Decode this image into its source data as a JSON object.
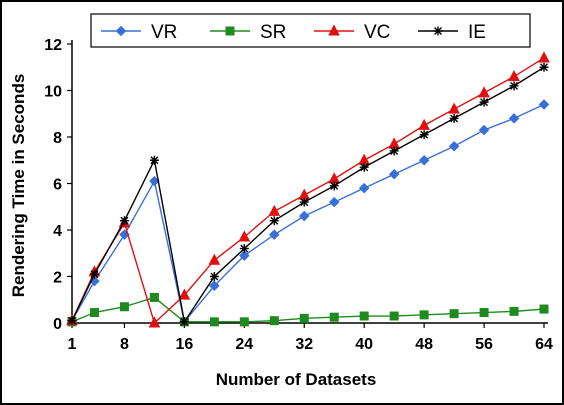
{
  "chart_data": {
    "type": "line",
    "title": "",
    "xlabel": "Number of Datasets",
    "ylabel": "Rendering Time in Seconds",
    "xlim": [
      1,
      64
    ],
    "ylim": [
      0,
      12
    ],
    "xticks": [
      1,
      8,
      16,
      24,
      32,
      40,
      48,
      56,
      64
    ],
    "yticks": [
      0,
      2,
      4,
      6,
      8,
      10,
      12
    ],
    "grid": false,
    "legend": "top",
    "series": [
      {
        "name": "VR",
        "color": "#3a6fd8",
        "marker": "diamond",
        "x": [
          1,
          4,
          8,
          12,
          16,
          20,
          24,
          28,
          32,
          36,
          40,
          44,
          48,
          52,
          56,
          60,
          64
        ],
        "y": [
          0.1,
          1.8,
          3.8,
          6.1,
          0.05,
          1.6,
          2.9,
          3.8,
          4.6,
          5.2,
          5.8,
          6.4,
          7.0,
          7.6,
          8.3,
          8.8,
          9.4
        ]
      },
      {
        "name": "SR",
        "color": "#1f8a1f",
        "marker": "square",
        "x": [
          1,
          4,
          8,
          12,
          16,
          20,
          24,
          28,
          32,
          36,
          40,
          44,
          48,
          52,
          56,
          60,
          64
        ],
        "y": [
          0.05,
          0.45,
          0.7,
          1.1,
          0.05,
          0.05,
          0.05,
          0.1,
          0.2,
          0.25,
          0.3,
          0.3,
          0.35,
          0.4,
          0.45,
          0.5,
          0.6
        ]
      },
      {
        "name": "VC",
        "color": "#e01010",
        "marker": "triangle",
        "x": [
          1,
          4,
          8,
          12,
          16,
          20,
          24,
          28,
          32,
          36,
          40,
          44,
          48,
          52,
          56,
          60,
          64
        ],
        "y": [
          0.1,
          2.2,
          4.3,
          0.0,
          1.2,
          2.7,
          3.7,
          4.8,
          5.5,
          6.2,
          7.0,
          7.7,
          8.5,
          9.2,
          9.9,
          10.6,
          11.4
        ]
      },
      {
        "name": "IE",
        "color": "#000000",
        "marker": "star",
        "x": [
          1,
          4,
          8,
          12,
          16,
          20,
          24,
          28,
          32,
          36,
          40,
          44,
          48,
          52,
          56,
          60,
          64
        ],
        "y": [
          0.1,
          2.1,
          4.4,
          7.0,
          0.05,
          2.0,
          3.2,
          4.4,
          5.2,
          5.9,
          6.7,
          7.4,
          8.1,
          8.8,
          9.5,
          10.2,
          11.0
        ]
      }
    ]
  }
}
